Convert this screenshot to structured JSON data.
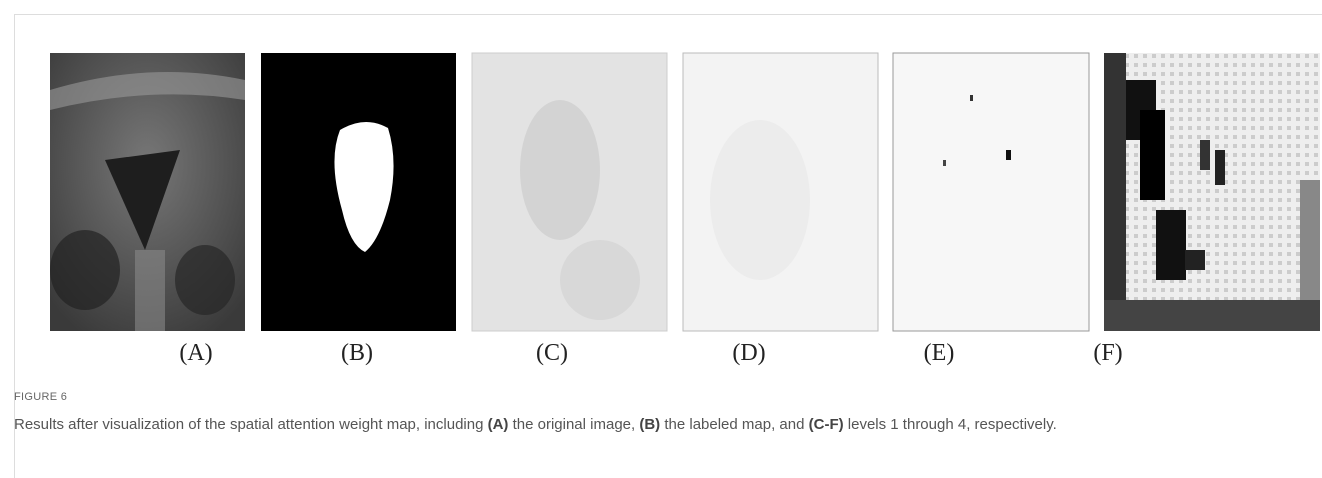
{
  "figure": {
    "panels": [
      {
        "label": "(A)"
      },
      {
        "label": "(B)"
      },
      {
        "label": "(C)"
      },
      {
        "label": "(D)"
      },
      {
        "label": "(E)"
      },
      {
        "label": "(F)"
      }
    ],
    "number": "FIGURE 6",
    "caption": [
      "Results after visualization of the spatial attention weight map, including ",
      "(A)",
      " the original image, ",
      "(B)",
      " the labeled map, and ",
      "(C-F)",
      " levels 1 through 4, respectively."
    ]
  }
}
